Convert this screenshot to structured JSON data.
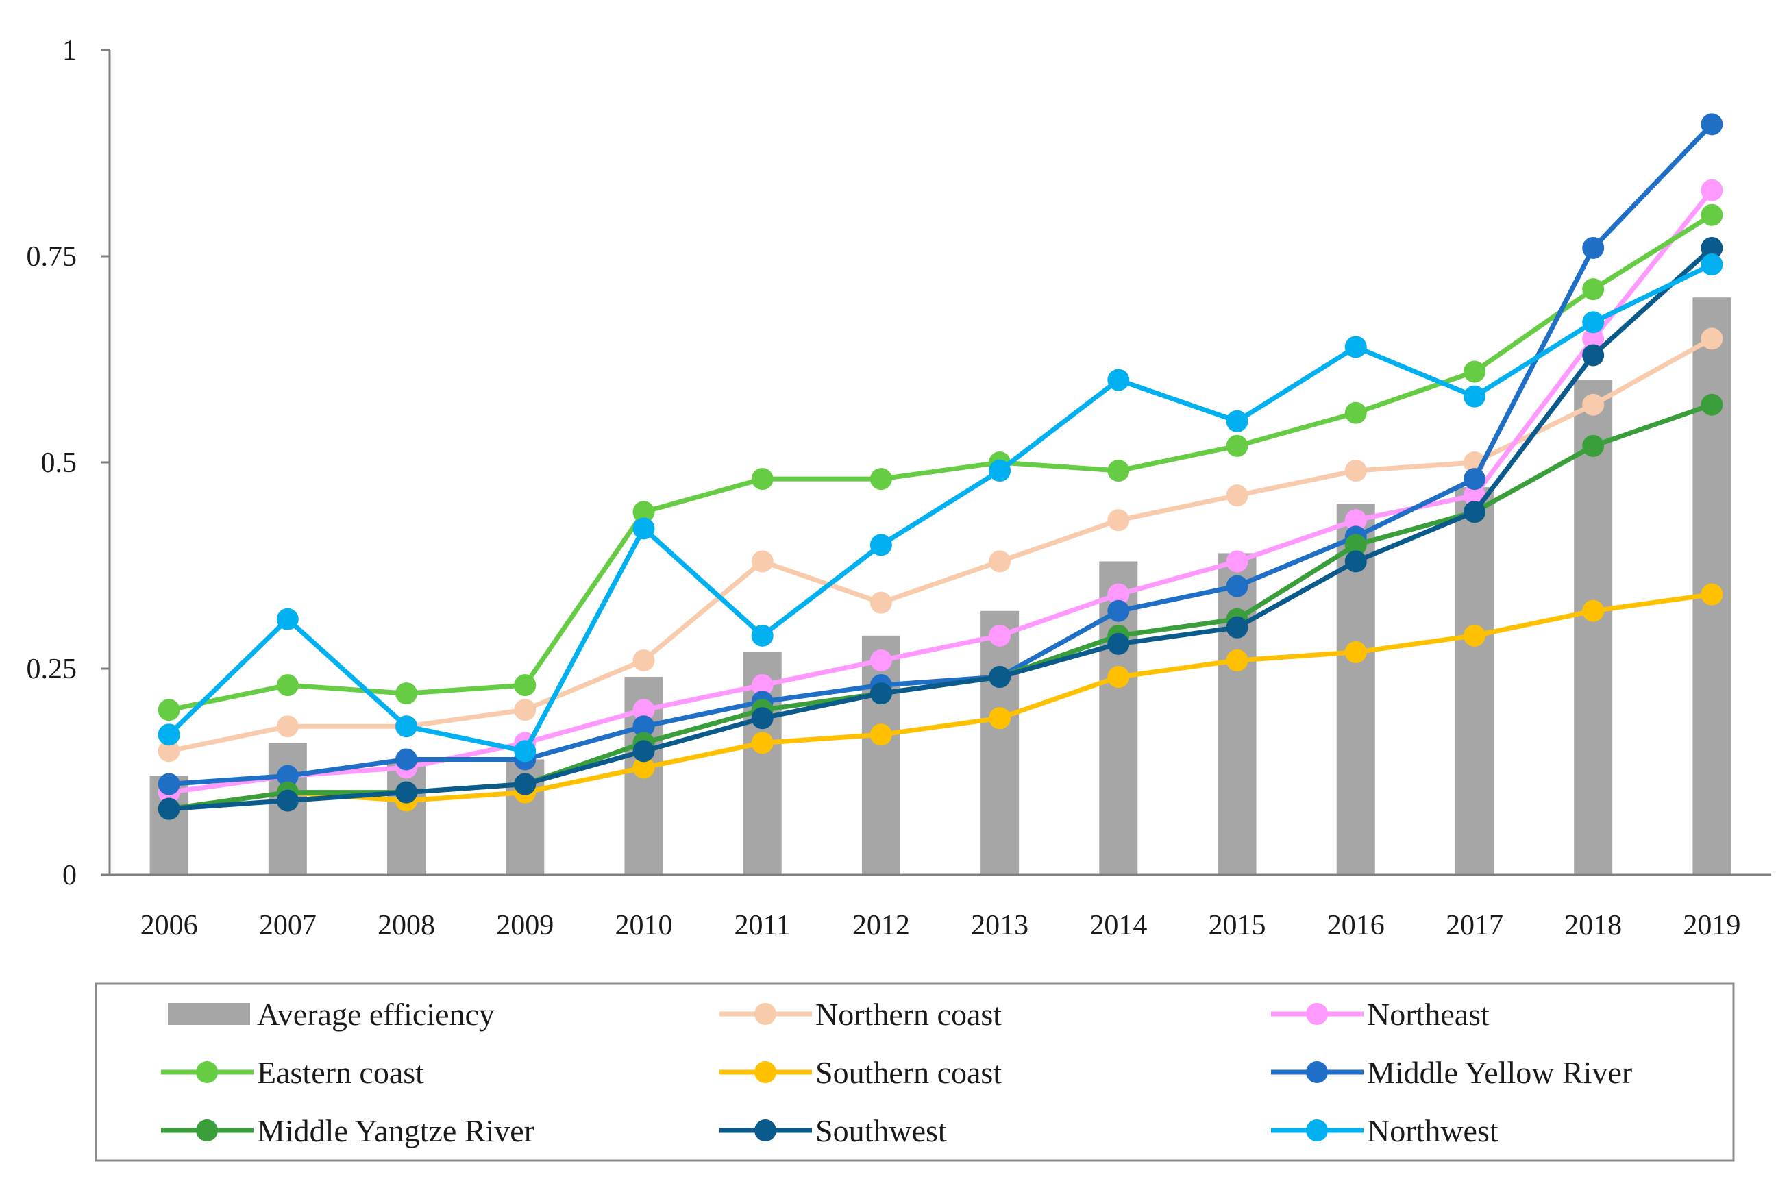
{
  "chart_data": {
    "type": "bar+line",
    "title": "",
    "xlabel": "",
    "ylabel": "",
    "ylim": [
      0,
      1
    ],
    "yticks": [
      0,
      0.25,
      0.5,
      0.75,
      1
    ],
    "ytick_labels": [
      "0",
      "0.25",
      "0.5",
      "0.75",
      "1"
    ],
    "categories": [
      "2006",
      "2007",
      "2008",
      "2009",
      "2010",
      "2011",
      "2012",
      "2013",
      "2014",
      "2015",
      "2016",
      "2017",
      "2018",
      "2019"
    ],
    "legend_position": "bottom",
    "bar_series": {
      "name": "Average efficiency",
      "color": "#a6a6a6",
      "values": [
        0.12,
        0.16,
        0.14,
        0.14,
        0.24,
        0.27,
        0.29,
        0.32,
        0.38,
        0.39,
        0.45,
        0.47,
        0.6,
        0.7
      ]
    },
    "series": [
      {
        "name": "Northern coast",
        "color": "#f8cbad",
        "values": [
          0.15,
          0.18,
          0.18,
          0.2,
          0.26,
          0.38,
          0.33,
          0.38,
          0.43,
          0.46,
          0.49,
          0.5,
          0.57,
          0.65
        ]
      },
      {
        "name": "Northeast",
        "color": "#ff99ff",
        "values": [
          0.1,
          0.12,
          0.13,
          0.16,
          0.2,
          0.23,
          0.26,
          0.29,
          0.34,
          0.38,
          0.43,
          0.46,
          0.65,
          0.83
        ]
      },
      {
        "name": "Eastern coast",
        "color": "#66cc44",
        "values": [
          0.2,
          0.23,
          0.22,
          0.23,
          0.44,
          0.48,
          0.48,
          0.5,
          0.49,
          0.52,
          0.56,
          0.61,
          0.71,
          0.8
        ]
      },
      {
        "name": "Southern coast",
        "color": "#ffc000",
        "values": [
          0.08,
          0.1,
          0.09,
          0.1,
          0.13,
          0.16,
          0.17,
          0.19,
          0.24,
          0.26,
          0.27,
          0.29,
          0.32,
          0.34
        ]
      },
      {
        "name": "Middle Yellow River",
        "color": "#1f6fc6",
        "values": [
          0.11,
          0.12,
          0.14,
          0.14,
          0.18,
          0.21,
          0.23,
          0.24,
          0.32,
          0.35,
          0.41,
          0.48,
          0.76,
          0.91
        ]
      },
      {
        "name": "Middle Yangtze River",
        "color": "#3a9e3a",
        "values": [
          0.08,
          0.1,
          0.1,
          0.11,
          0.16,
          0.2,
          0.22,
          0.24,
          0.29,
          0.31,
          0.4,
          0.44,
          0.52,
          0.57
        ]
      },
      {
        "name": "Southwest",
        "color": "#0b5a8c",
        "values": [
          0.08,
          0.09,
          0.1,
          0.11,
          0.15,
          0.19,
          0.22,
          0.24,
          0.28,
          0.3,
          0.38,
          0.44,
          0.63,
          0.76
        ]
      },
      {
        "name": "Northwest",
        "color": "#00b0f0",
        "values": [
          0.17,
          0.31,
          0.18,
          0.15,
          0.42,
          0.29,
          0.4,
          0.49,
          0.6,
          0.55,
          0.64,
          0.58,
          0.67,
          0.74
        ]
      }
    ],
    "legend_order": [
      "Average efficiency",
      "Northern coast",
      "Northeast",
      "Eastern coast",
      "Southern coast",
      "Middle Yellow River",
      "Middle Yangtze River",
      "Southwest",
      "Northwest"
    ]
  }
}
